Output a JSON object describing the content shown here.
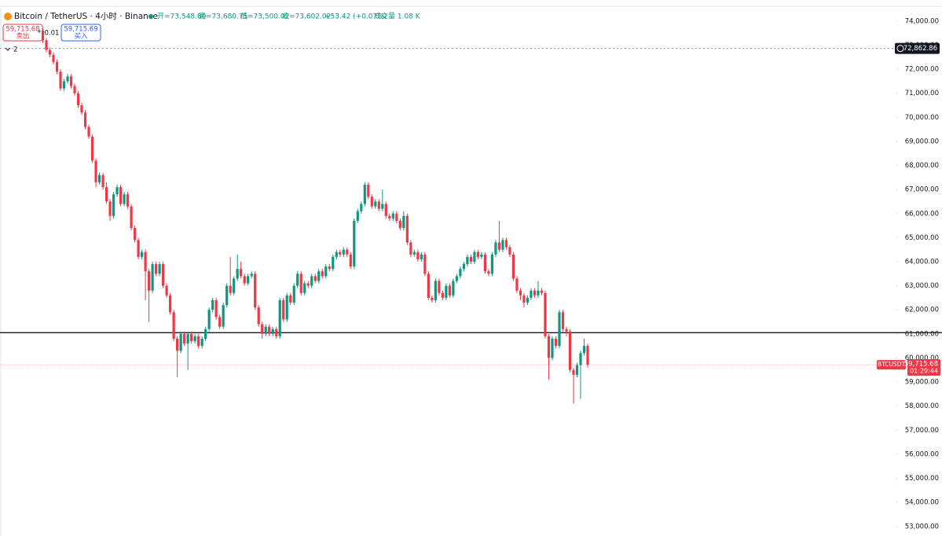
{
  "header": {
    "title": "Bitcoin / TetherUS · 4小时 · Binance",
    "open": "开=73,548.60",
    "high": "高=73,680.75",
    "low": "低=73,500.02",
    "close": "收=73,602.02",
    "change": "+53.42 (+0.07%)",
    "volume": "成交量 1.08 K",
    "sell_price": "59,715.68",
    "sell": "卖出",
    "spread": "0.01",
    "buy_price": "59,715.69",
    "buy": "买入",
    "indicator_count": "2"
  },
  "chart_data": {
    "type": "candlestick",
    "up_color": "#089981",
    "down_color": "#f23645",
    "ylim": [
      52600,
      74550
    ],
    "yticks": [
      {
        "value": 74000,
        "label": "74,000.00"
      },
      {
        "value": 73000,
        "label": "73,000.00"
      },
      {
        "value": 72000,
        "label": "72,000.00"
      },
      {
        "value": 71000,
        "label": "71,000.00"
      },
      {
        "value": 70000,
        "label": "70,000.00"
      },
      {
        "value": 69000,
        "label": "69,000.00"
      },
      {
        "value": 68000,
        "label": "68,000.00"
      },
      {
        "value": 67000,
        "label": "67,000.00"
      },
      {
        "value": 66000,
        "label": "66,000.00"
      },
      {
        "value": 65000,
        "label": "65,000.00"
      },
      {
        "value": 64000,
        "label": "64,000.00"
      },
      {
        "value": 63000,
        "label": "63,000.00"
      },
      {
        "value": 62000,
        "label": "62,000.00"
      },
      {
        "value": 61000,
        "label": "61,000.00"
      },
      {
        "value": 60000,
        "label": "60,000.00"
      },
      {
        "value": 59000,
        "label": "59,000.00"
      },
      {
        "value": 58000,
        "label": "58,000.00"
      },
      {
        "value": 57000,
        "label": "57,000.00"
      },
      {
        "value": 56000,
        "label": "56,000.00"
      },
      {
        "value": 55000,
        "label": "55,000.00"
      },
      {
        "value": 54000,
        "label": "54,000.00"
      },
      {
        "value": 53000,
        "label": "53,000.00"
      }
    ],
    "horizontal_line": 61050,
    "crosshair_price": {
      "value": 72862.86,
      "label": "72,862.86"
    },
    "last_price": {
      "symbol": "BTCUSDT",
      "value": 59715.68,
      "label": "59,715.68",
      "countdown": "01:29:44"
    },
    "ohlc": [
      [
        73548.6,
        73680.75,
        73500.02,
        73602.02
      ],
      [
        73602,
        73700,
        73100,
        73200
      ],
      [
        73200,
        73300,
        72700,
        72800
      ],
      [
        72800,
        72900,
        72500,
        72600
      ],
      [
        72600,
        72700,
        72200,
        72300
      ],
      [
        72300,
        72400,
        71800,
        71900
      ],
      [
        71900,
        72000,
        71100,
        71200
      ],
      [
        71200,
        71600,
        71100,
        71500
      ],
      [
        71500,
        71800,
        71400,
        71700
      ],
      [
        71700,
        71800,
        71200,
        71300
      ],
      [
        71300,
        71400,
        70900,
        71000
      ],
      [
        71000,
        71100,
        70400,
        70500
      ],
      [
        70500,
        70600,
        70100,
        70200
      ],
      [
        70200,
        70300,
        69500,
        69600
      ],
      [
        69600,
        69700,
        69100,
        69200
      ],
      [
        69200,
        69300,
        68100,
        68200
      ],
      [
        68200,
        68300,
        67100,
        67300
      ],
      [
        67300,
        67700,
        67200,
        67600
      ],
      [
        67600,
        67700,
        67000,
        67100
      ],
      [
        67100,
        67300,
        66400,
        66500
      ],
      [
        66500,
        66600,
        65700,
        65900
      ],
      [
        65900,
        66900,
        65800,
        66800
      ],
      [
        66800,
        67200,
        66700,
        67100
      ],
      [
        67100,
        67200,
        66300,
        66400
      ],
      [
        66400,
        66900,
        66300,
        66800
      ],
      [
        66800,
        66900,
        66200,
        66300
      ],
      [
        66300,
        66400,
        65300,
        65400
      ],
      [
        65400,
        65500,
        64800,
        64900
      ],
      [
        64900,
        65000,
        64100,
        64200
      ],
      [
        64200,
        64500,
        64100,
        64400
      ],
      [
        64400,
        64500,
        62400,
        63600
      ],
      [
        63600,
        63700,
        61500,
        62800
      ],
      [
        62800,
        64000,
        62700,
        63900
      ],
      [
        63900,
        64000,
        63400,
        63500
      ],
      [
        63500,
        64000,
        63400,
        63900
      ],
      [
        63900,
        64000,
        62900,
        63000
      ],
      [
        63000,
        63100,
        62500,
        62600
      ],
      [
        62600,
        62700,
        61800,
        61900
      ],
      [
        61900,
        62000,
        60700,
        60800
      ],
      [
        60800,
        60900,
        59200,
        60300
      ],
      [
        60300,
        61100,
        60200,
        61000
      ],
      [
        61000,
        61100,
        60500,
        60600
      ],
      [
        60600,
        61100,
        59500,
        61000
      ],
      [
        61000,
        61100,
        60600,
        60700
      ],
      [
        60700,
        61000,
        60600,
        60900
      ],
      [
        60900,
        61000,
        60400,
        60500
      ],
      [
        60500,
        60900,
        60400,
        60800
      ],
      [
        60800,
        61300,
        60700,
        61200
      ],
      [
        61200,
        62100,
        61100,
        62000
      ],
      [
        62000,
        62500,
        61900,
        62400
      ],
      [
        62400,
        62500,
        61600,
        61700
      ],
      [
        61700,
        61800,
        61200,
        61300
      ],
      [
        61300,
        62300,
        61200,
        62200
      ],
      [
        62200,
        63100,
        62100,
        63000
      ],
      [
        63000,
        64200,
        62600,
        62700
      ],
      [
        62700,
        63400,
        62600,
        63300
      ],
      [
        63300,
        64300,
        63200,
        63700
      ],
      [
        63700,
        64000,
        63300,
        63400
      ],
      [
        63400,
        63500,
        63000,
        63100
      ],
      [
        63100,
        63500,
        63000,
        63400
      ],
      [
        63400,
        63600,
        63300,
        63500
      ],
      [
        63500,
        63600,
        62000,
        62100
      ],
      [
        62100,
        62200,
        61300,
        61400
      ],
      [
        61400,
        61500,
        60800,
        61000
      ],
      [
        61000,
        61400,
        60900,
        61300
      ],
      [
        61300,
        61400,
        60900,
        61000
      ],
      [
        61000,
        61300,
        60900,
        61200
      ],
      [
        61200,
        61300,
        60800,
        60900
      ],
      [
        60900,
        62500,
        60800,
        62400
      ],
      [
        62400,
        62500,
        61500,
        61600
      ],
      [
        61600,
        62700,
        61500,
        62600
      ],
      [
        62600,
        62700,
        62200,
        62300
      ],
      [
        62300,
        63100,
        62200,
        63000
      ],
      [
        63000,
        63600,
        62900,
        63500
      ],
      [
        63500,
        63600,
        62600,
        62700
      ],
      [
        62700,
        63200,
        62600,
        63100
      ],
      [
        63100,
        63200,
        62900,
        63000
      ],
      [
        63000,
        63500,
        62900,
        63400
      ],
      [
        63400,
        63500,
        63100,
        63200
      ],
      [
        63200,
        63700,
        63100,
        63600
      ],
      [
        63600,
        63700,
        63300,
        63400
      ],
      [
        63400,
        63900,
        63300,
        63800
      ],
      [
        63800,
        63900,
        63600,
        63700
      ],
      [
        63700,
        64300,
        63600,
        64200
      ],
      [
        64200,
        64500,
        64100,
        64400
      ],
      [
        64400,
        64500,
        64200,
        64300
      ],
      [
        64300,
        64600,
        64200,
        64500
      ],
      [
        64500,
        64600,
        64200,
        64300
      ],
      [
        64300,
        64400,
        63700,
        63800
      ],
      [
        63800,
        65800,
        63700,
        65700
      ],
      [
        65700,
        66200,
        65600,
        66100
      ],
      [
        66100,
        66500,
        66000,
        66400
      ],
      [
        66400,
        67300,
        66300,
        67200
      ],
      [
        67200,
        67300,
        66600,
        66700
      ],
      [
        66700,
        66800,
        66200,
        66300
      ],
      [
        66300,
        66600,
        66200,
        66500
      ],
      [
        66500,
        66600,
        66100,
        66200
      ],
      [
        66200,
        67000,
        66100,
        66400
      ],
      [
        66400,
        66500,
        65800,
        65900
      ],
      [
        65900,
        66000,
        65700,
        65800
      ],
      [
        65800,
        66100,
        65700,
        66000
      ],
      [
        66000,
        66100,
        65600,
        65700
      ],
      [
        65700,
        65800,
        65300,
        65400
      ],
      [
        65400,
        66100,
        65300,
        65900
      ],
      [
        65900,
        66000,
        64700,
        64800
      ],
      [
        64800,
        64900,
        64200,
        64300
      ],
      [
        64300,
        64500,
        64200,
        64400
      ],
      [
        64400,
        64500,
        64000,
        64100
      ],
      [
        64100,
        64400,
        64000,
        64300
      ],
      [
        64300,
        64400,
        63400,
        63500
      ],
      [
        63500,
        63600,
        62400,
        62500
      ],
      [
        62500,
        62600,
        62300,
        62400
      ],
      [
        62400,
        63300,
        62300,
        63200
      ],
      [
        63200,
        63300,
        62600,
        62700
      ],
      [
        62700,
        62800,
        62400,
        62500
      ],
      [
        62500,
        63100,
        62400,
        63000
      ],
      [
        63000,
        63100,
        62500,
        62600
      ],
      [
        62600,
        63300,
        62500,
        63200
      ],
      [
        63200,
        63500,
        63100,
        63400
      ],
      [
        63400,
        63800,
        63300,
        63700
      ],
      [
        63700,
        64000,
        63600,
        63900
      ],
      [
        63900,
        64300,
        63800,
        64200
      ],
      [
        64200,
        64300,
        63900,
        64000
      ],
      [
        64000,
        64500,
        63900,
        64400
      ],
      [
        64400,
        64500,
        64100,
        64200
      ],
      [
        64200,
        64400,
        64100,
        64300
      ],
      [
        64300,
        64400,
        63500,
        63600
      ],
      [
        63600,
        63700,
        63400,
        63500
      ],
      [
        63500,
        64400,
        63400,
        64300
      ],
      [
        64300,
        64900,
        64200,
        64800
      ],
      [
        64800,
        65700,
        64400,
        64500
      ],
      [
        64500,
        65000,
        64400,
        64900
      ],
      [
        64900,
        65000,
        64500,
        64600
      ],
      [
        64600,
        64700,
        64200,
        64300
      ],
      [
        64300,
        64400,
        63200,
        63300
      ],
      [
        63300,
        63400,
        62700,
        62800
      ],
      [
        62800,
        62900,
        62400,
        62600
      ],
      [
        62600,
        62700,
        62100,
        62300
      ],
      [
        62300,
        62600,
        62200,
        62500
      ],
      [
        62500,
        62900,
        62400,
        62800
      ],
      [
        62800,
        62900,
        62500,
        62600
      ],
      [
        62600,
        63200,
        62500,
        62800
      ],
      [
        62800,
        62900,
        62600,
        62700
      ],
      [
        62700,
        62800,
        60800,
        60900
      ],
      [
        60900,
        61000,
        59100,
        60000
      ],
      [
        60000,
        60900,
        59900,
        60800
      ],
      [
        60800,
        60900,
        60400,
        60500
      ],
      [
        60500,
        62000,
        60400,
        61900
      ],
      [
        61900,
        62000,
        61100,
        61200
      ],
      [
        61200,
        61300,
        60900,
        61100
      ],
      [
        61100,
        61200,
        59400,
        59500
      ],
      [
        59500,
        59600,
        58100,
        59300
      ],
      [
        59300,
        59800,
        59200,
        59700
      ],
      [
        59700,
        60300,
        58300,
        60200
      ],
      [
        60200,
        60800,
        60100,
        60500
      ],
      [
        60500,
        60600,
        59600,
        59715.68
      ]
    ]
  }
}
